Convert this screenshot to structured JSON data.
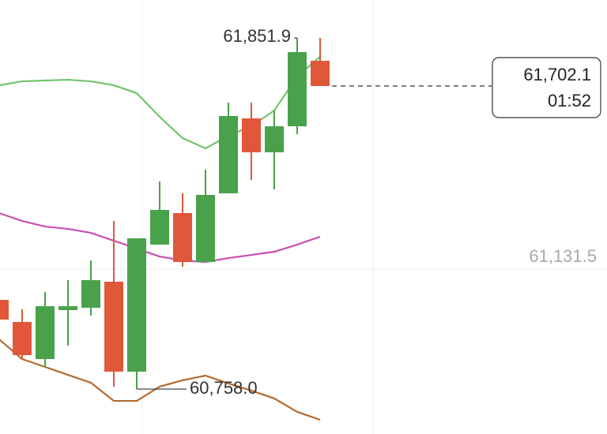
{
  "chart_data": {
    "type": "candlestick",
    "up_color": "#49a24b",
    "down_color": "#e0573a",
    "open": [
      61035.8,
      60967.0,
      60851.5,
      61003.9,
      61011.3,
      61092.4,
      60812.2,
      61207.9,
      61306.2,
      61153.8,
      61367.7,
      61601.2,
      61495.5,
      61576.6,
      61780.6
    ],
    "high": [
      61109.6,
      61006.3,
      61060.4,
      61097.3,
      61158.7,
      61281.6,
      61227.6,
      61404.5,
      61367.7,
      61441.4,
      61650.3,
      61650.3,
      61625.8,
      61851.9,
      61851.9
    ],
    "low": [
      60888.4,
      60851.5,
      60824.5,
      60893.3,
      60986.7,
      60765.5,
      60758.0,
      61207.9,
      61139.1,
      61153.8,
      61367.7,
      61409.5,
      61380.0,
      61552.0,
      61702.1
    ],
    "close": [
      60974.4,
      60863.8,
      61016.2,
      61016.2,
      61097.3,
      60812.2,
      61227.6,
      61316.1,
      61153.8,
      61362.8,
      61608.6,
      61495.5,
      61576.6,
      61807.7,
      61702.1
    ],
    "bands": [
      {
        "color": "#72c46f",
        "values": [
          61704.4,
          61716.7,
          61719.2,
          61721.6,
          61716.7,
          61704.4,
          61679.8,
          61606.1,
          61539.7,
          61507.8,
          61547.1,
          61576.6,
          61625.8,
          61731.5,
          61793.0
        ]
      },
      {
        "color": "#c94fb3",
        "values": [
          61306.2,
          61281.6,
          61264.4,
          61257.0,
          61244.7,
          61220.1,
          61195.5,
          61170.9,
          61158.7,
          61153.8,
          61166.1,
          61175.9,
          61185.8,
          61207.9,
          61232.5
        ]
      },
      {
        "color": "#b5692d",
        "values": [
          60912.9,
          60851.5,
          60826.9,
          60802.3,
          60777.7,
          60721.1,
          60721.1,
          60765.5,
          60785.2,
          60799.9,
          60775.4,
          60753.3,
          60728.7,
          60686.9,
          60662.3
        ]
      }
    ],
    "ylim": [
      60618.0,
      61970.0
    ],
    "yticks": [
      {
        "value": 61131.5,
        "label": "61,131.5"
      }
    ],
    "grid": true,
    "high_label": {
      "value": 61851.9,
      "label": "61,851.9"
    },
    "low_label": {
      "value": 60758.0,
      "label": "60,758.0"
    },
    "last_price": {
      "value": 61702.1,
      "label": "61,702.1"
    },
    "countdown": "01:52"
  }
}
